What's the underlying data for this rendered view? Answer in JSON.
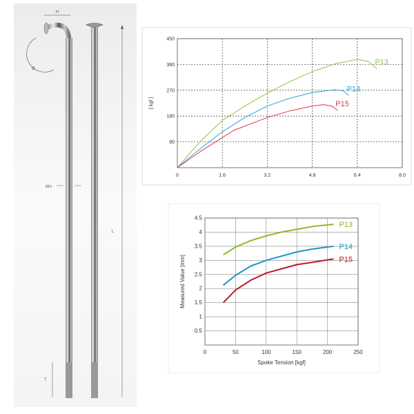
{
  "illustration": {
    "labels": {
      "h": "H",
      "alpha": "α",
      "diameter": "ØDI",
      "length": "L",
      "thread": "T"
    }
  },
  "chart_data": [
    {
      "type": "line",
      "title": "",
      "xlabel": "",
      "ylabel": "[ kgf ]",
      "xlim": [
        0,
        8.0
      ],
      "ylim": [
        0,
        450
      ],
      "xticks": [
        "0",
        "1.6",
        "3.2",
        "4.8",
        "6.4",
        "8.0"
      ],
      "yticks": [
        "90",
        "180",
        "270",
        "360",
        "450"
      ],
      "grid": "dashed",
      "series": [
        {
          "name": "P13",
          "color": "#8cc63f",
          "x": [
            0,
            0.8,
            1.6,
            2.4,
            3.2,
            4.0,
            4.8,
            5.6,
            6.4,
            6.8,
            7.1
          ],
          "y": [
            0,
            90,
            165,
            215,
            260,
            300,
            335,
            362,
            378,
            370,
            345
          ]
        },
        {
          "name": "P14",
          "color": "#29a3d6",
          "x": [
            0,
            0.8,
            1.6,
            2.4,
            3.2,
            4.0,
            4.8,
            5.6,
            5.9,
            6.1
          ],
          "y": [
            0,
            65,
            125,
            175,
            215,
            242,
            262,
            272,
            268,
            252
          ]
        },
        {
          "name": "P15",
          "color": "#e0334a",
          "x": [
            0,
            0.8,
            1.6,
            2.0,
            3.2,
            4.0,
            4.8,
            5.2,
            5.5,
            5.7
          ],
          "y": [
            0,
            55,
            105,
            130,
            175,
            198,
            215,
            220,
            215,
            200
          ]
        }
      ]
    },
    {
      "type": "line",
      "title": "",
      "xlabel": "Spoke Tension [kgf]",
      "ylabel": "Measured Value [mm]",
      "xlim": [
        0,
        250
      ],
      "ylim": [
        0,
        4.5
      ],
      "xticks": [
        "0",
        "50",
        "100",
        "150",
        "200",
        "250"
      ],
      "yticks": [
        "0.5",
        "1",
        "1.5",
        "2",
        "2.5",
        "3",
        "3.5",
        "4",
        "4.5"
      ],
      "grid": "solid",
      "series": [
        {
          "name": "P13",
          "color": "#8db82b",
          "x": [
            30,
            50,
            75,
            100,
            125,
            150,
            175,
            210
          ],
          "y": [
            3.2,
            3.47,
            3.7,
            3.87,
            4.0,
            4.1,
            4.2,
            4.28
          ]
        },
        {
          "name": "P14",
          "color": "#1f95c4",
          "x": [
            30,
            50,
            75,
            100,
            125,
            150,
            175,
            210
          ],
          "y": [
            2.12,
            2.47,
            2.8,
            3.0,
            3.15,
            3.3,
            3.4,
            3.5
          ]
        },
        {
          "name": "P15",
          "color": "#b8182f",
          "x": [
            30,
            50,
            75,
            100,
            125,
            150,
            175,
            210
          ],
          "y": [
            1.5,
            1.95,
            2.3,
            2.55,
            2.7,
            2.85,
            2.93,
            3.05
          ]
        }
      ]
    }
  ]
}
